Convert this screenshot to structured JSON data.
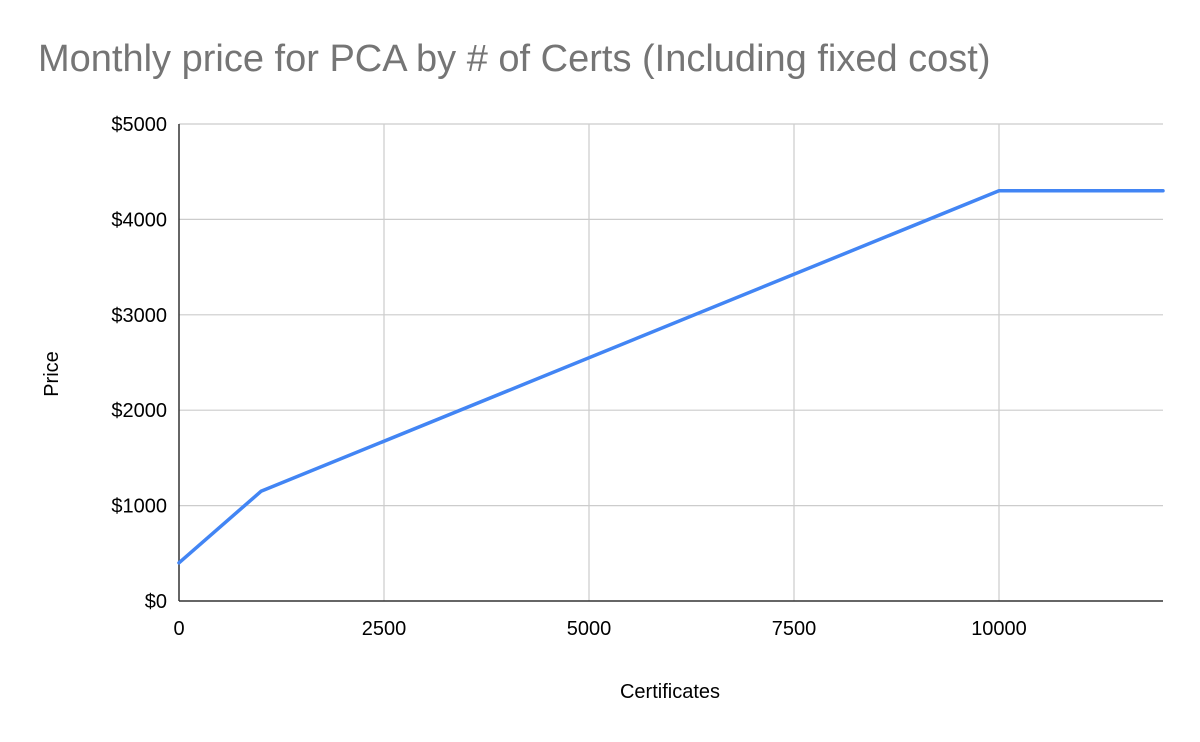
{
  "chart_data": {
    "type": "line",
    "title": "Monthly price for PCA by # of Certs (Including fixed cost)",
    "xlabel": "Certificates",
    "ylabel": "Price",
    "xlim": [
      0,
      12000
    ],
    "ylim": [
      0,
      5000
    ],
    "x_ticks": [
      0,
      2500,
      5000,
      7500,
      10000
    ],
    "x_tick_labels": [
      "0",
      "2500",
      "5000",
      "7500",
      "10000"
    ],
    "y_ticks": [
      0,
      1000,
      2000,
      3000,
      4000,
      5000
    ],
    "y_tick_labels": [
      "$0",
      "$1000",
      "$2000",
      "$3000",
      "$4000",
      "$5000"
    ],
    "grid": true,
    "colors": {
      "line": "#4285f4",
      "grid": "#cccccc",
      "axis": "#333333",
      "title": "#757575"
    },
    "series": [
      {
        "x": [
          0,
          1000,
          10000,
          12000
        ],
        "y": [
          400,
          1150,
          4300,
          4300
        ]
      }
    ]
  }
}
